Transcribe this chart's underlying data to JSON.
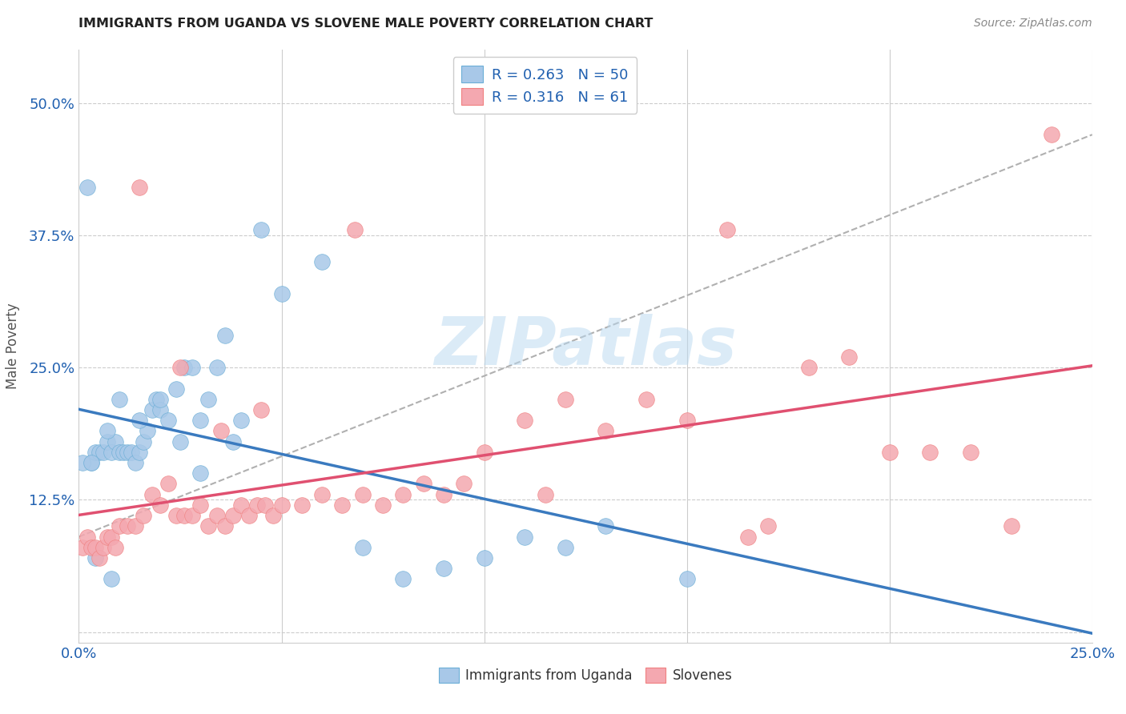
{
  "title": "IMMIGRANTS FROM UGANDA VS SLOVENE MALE POVERTY CORRELATION CHART",
  "source": "Source: ZipAtlas.com",
  "ylabel": "Male Poverty",
  "xlim": [
    0,
    0.25
  ],
  "ylim": [
    -0.01,
    0.55
  ],
  "xticks": [
    0.0,
    0.05,
    0.1,
    0.15,
    0.2,
    0.25
  ],
  "xticklabels": [
    "0.0%",
    "",
    "",
    "",
    "",
    "25.0%"
  ],
  "yticks": [
    0.0,
    0.125,
    0.25,
    0.375,
    0.5
  ],
  "yticklabels": [
    "",
    "12.5%",
    "25.0%",
    "37.5%",
    "50.0%"
  ],
  "blue_color": "#a8c8e8",
  "pink_color": "#f4a8b0",
  "blue_edge_color": "#6baed6",
  "pink_edge_color": "#f08080",
  "blue_line_color": "#3a7abf",
  "pink_line_color": "#e05070",
  "gray_dash_color": "#b0b0b0",
  "legend_text_color": "#2060b0",
  "legend_label_color": "#333333",
  "watermark": "ZIPatlas",
  "legend_R_blue": "0.263",
  "legend_N_blue": "50",
  "legend_R_pink": "0.316",
  "legend_N_pink": "61",
  "blue_scatter_x": [
    0.002,
    0.003,
    0.004,
    0.005,
    0.006,
    0.007,
    0.008,
    0.009,
    0.01,
    0.011,
    0.012,
    0.013,
    0.014,
    0.015,
    0.016,
    0.017,
    0.018,
    0.019,
    0.02,
    0.022,
    0.024,
    0.026,
    0.028,
    0.03,
    0.032,
    0.034,
    0.036,
    0.038,
    0.04,
    0.045,
    0.05,
    0.06,
    0.07,
    0.08,
    0.09,
    0.1,
    0.11,
    0.12,
    0.13,
    0.15,
    0.001,
    0.003,
    0.007,
    0.01,
    0.015,
    0.02,
    0.025,
    0.03,
    0.004,
    0.008
  ],
  "blue_scatter_y": [
    0.42,
    0.16,
    0.17,
    0.17,
    0.17,
    0.18,
    0.17,
    0.18,
    0.17,
    0.17,
    0.17,
    0.17,
    0.16,
    0.17,
    0.18,
    0.19,
    0.21,
    0.22,
    0.21,
    0.2,
    0.23,
    0.25,
    0.25,
    0.2,
    0.22,
    0.25,
    0.28,
    0.18,
    0.2,
    0.38,
    0.32,
    0.35,
    0.08,
    0.05,
    0.06,
    0.07,
    0.09,
    0.08,
    0.1,
    0.05,
    0.16,
    0.16,
    0.19,
    0.22,
    0.2,
    0.22,
    0.18,
    0.15,
    0.07,
    0.05
  ],
  "pink_scatter_x": [
    0.001,
    0.002,
    0.003,
    0.004,
    0.005,
    0.006,
    0.007,
    0.008,
    0.009,
    0.01,
    0.012,
    0.014,
    0.015,
    0.016,
    0.018,
    0.02,
    0.022,
    0.024,
    0.026,
    0.028,
    0.03,
    0.032,
    0.034,
    0.036,
    0.038,
    0.04,
    0.042,
    0.044,
    0.046,
    0.048,
    0.05,
    0.055,
    0.06,
    0.065,
    0.07,
    0.075,
    0.08,
    0.085,
    0.09,
    0.095,
    0.1,
    0.11,
    0.12,
    0.13,
    0.14,
    0.15,
    0.16,
    0.17,
    0.18,
    0.19,
    0.2,
    0.21,
    0.22,
    0.025,
    0.035,
    0.045,
    0.068,
    0.115,
    0.165,
    0.23,
    0.24
  ],
  "pink_scatter_y": [
    0.08,
    0.09,
    0.08,
    0.08,
    0.07,
    0.08,
    0.09,
    0.09,
    0.08,
    0.1,
    0.1,
    0.1,
    0.42,
    0.11,
    0.13,
    0.12,
    0.14,
    0.11,
    0.11,
    0.11,
    0.12,
    0.1,
    0.11,
    0.1,
    0.11,
    0.12,
    0.11,
    0.12,
    0.12,
    0.11,
    0.12,
    0.12,
    0.13,
    0.12,
    0.13,
    0.12,
    0.13,
    0.14,
    0.13,
    0.14,
    0.17,
    0.2,
    0.22,
    0.19,
    0.22,
    0.2,
    0.38,
    0.1,
    0.25,
    0.26,
    0.17,
    0.17,
    0.17,
    0.25,
    0.19,
    0.21,
    0.38,
    0.13,
    0.09,
    0.1,
    0.47
  ]
}
